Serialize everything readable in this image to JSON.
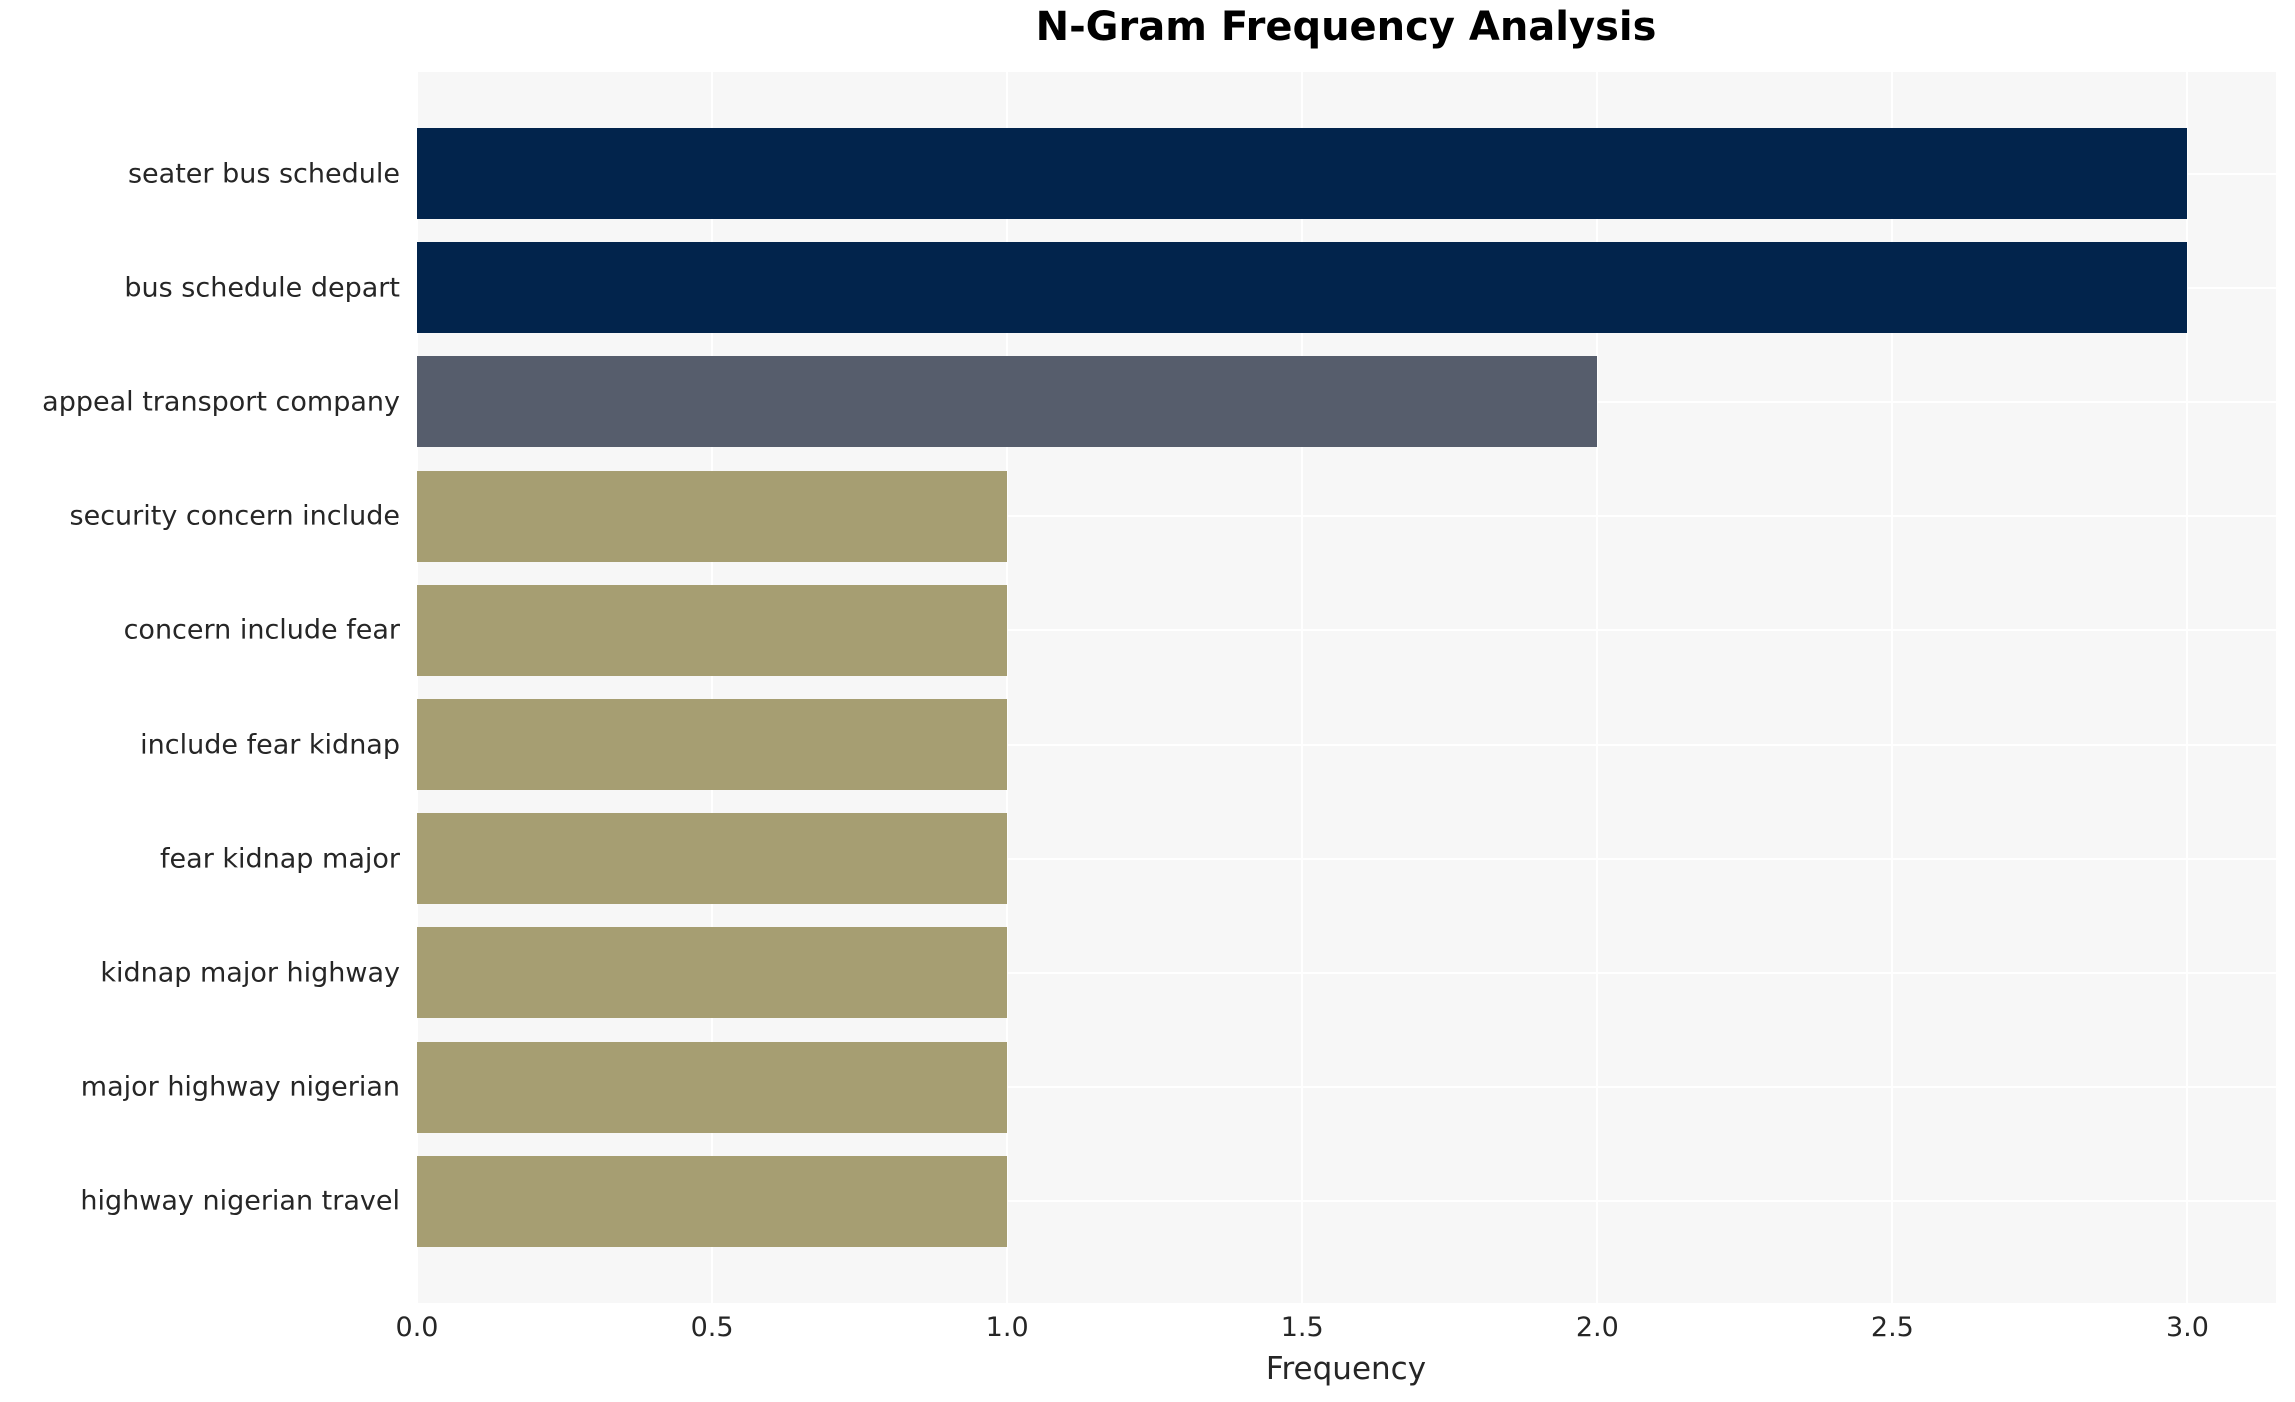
{
  "chart_data": {
    "type": "bar",
    "orientation": "horizontal",
    "title": "N-Gram Frequency Analysis",
    "xlabel": "Frequency",
    "ylabel": "",
    "categories": [
      "seater bus schedule",
      "bus schedule depart",
      "appeal transport company",
      "security concern include",
      "concern include fear",
      "include fear kidnap",
      "fear kidnap major",
      "kidnap major highway",
      "major highway nigerian",
      "highway nigerian travel"
    ],
    "values": [
      3,
      3,
      2,
      1,
      1,
      1,
      1,
      1,
      1,
      1
    ],
    "bar_colors": [
      "#02244c",
      "#02244c",
      "#565d6c",
      "#a69e72",
      "#a69e72",
      "#a69e72",
      "#a69e72",
      "#a69e72",
      "#a69e72",
      "#a69e72"
    ],
    "xlim": [
      0,
      3.15
    ],
    "xticks": [
      0.0,
      0.5,
      1.0,
      1.5,
      2.0,
      2.5,
      3.0
    ],
    "xtick_labels": [
      "0.0",
      "0.5",
      "1.0",
      "1.5",
      "2.0",
      "2.5",
      "3.0"
    ],
    "grid": true,
    "legend_position": "none",
    "plot_background": "#f7f7f7",
    "grid_color": "#ffffff",
    "text_color": "#262626",
    "title_color": "#000000"
  }
}
